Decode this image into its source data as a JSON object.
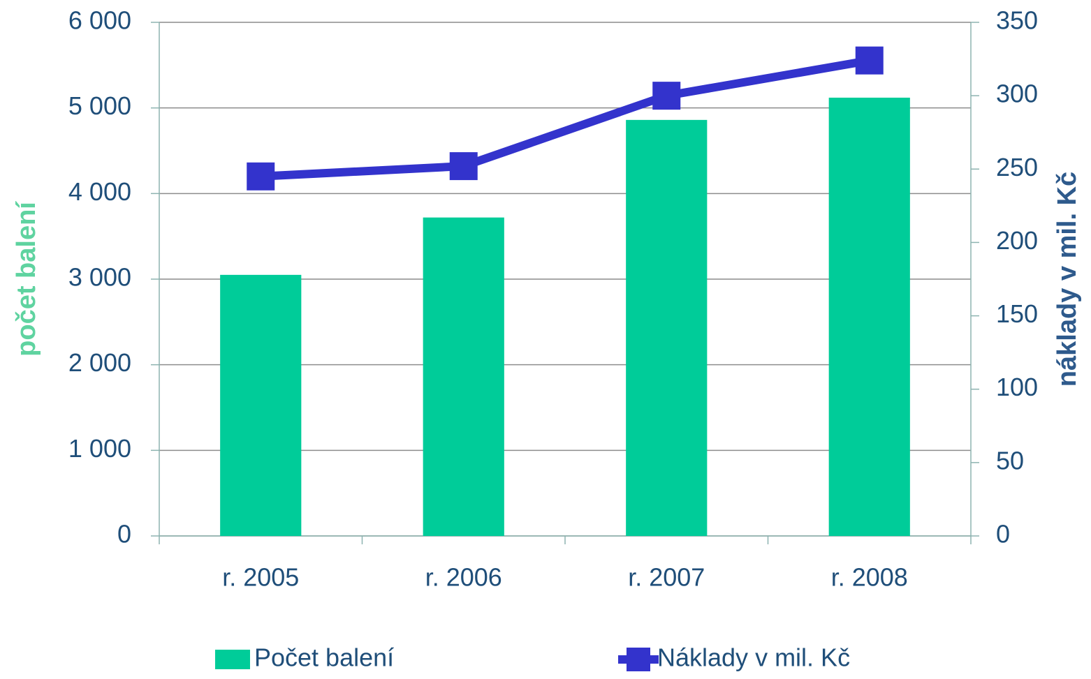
{
  "chart_data": {
    "type": "bar",
    "categories": [
      "r. 2005",
      "r. 2006",
      "r. 2007",
      "r. 2008"
    ],
    "series": [
      {
        "name": "Počet balení",
        "type": "bar",
        "color": "#00cc99",
        "values": [
          3050,
          3720,
          4860,
          5120
        ]
      },
      {
        "name": "Náklady v mil. Kč",
        "type": "line",
        "axis": "y2",
        "color": "#3333cc",
        "values": [
          245,
          252,
          300,
          324
        ]
      }
    ],
    "ylabel": "počet balení",
    "y2label": "náklady v mil. Kč",
    "ylim": [
      0,
      6000
    ],
    "yticks": [
      0,
      {
        "value": 1000,
        "label": "1 000"
      },
      {
        "value": 2000,
        "label": "2 000"
      },
      {
        "value": 3000,
        "label": "3 000"
      },
      {
        "value": 4000,
        "label": "4 000"
      },
      {
        "value": 5000,
        "label": "5 000"
      },
      {
        "value": 6000,
        "label": "6 000"
      }
    ],
    "y2lim": [
      0,
      350
    ],
    "y2ticks": [
      0,
      50,
      100,
      150,
      200,
      250,
      300,
      350
    ],
    "grid": true,
    "legend": "bottom"
  }
}
